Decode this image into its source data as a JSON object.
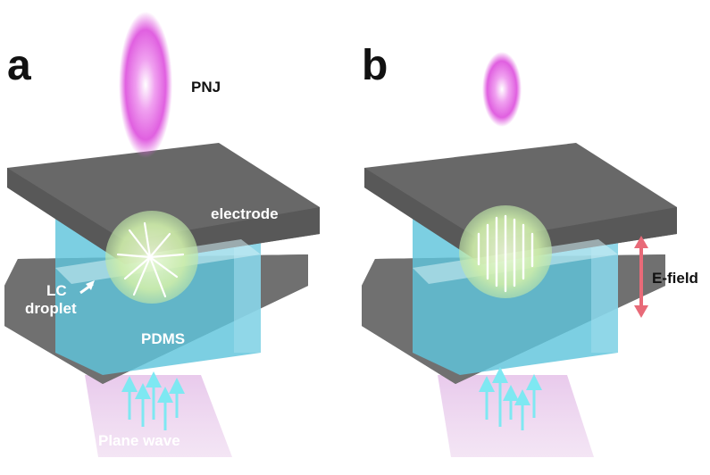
{
  "panels": [
    {
      "label": "a",
      "pnj_label": "PNJ",
      "electrode_label": "electrode",
      "droplet_label_line1": "LC",
      "droplet_label_line2": "droplet",
      "pdms_label": "PDMS",
      "plane_wave_label": "Plane wave",
      "liquid_crystal_state": "random"
    },
    {
      "label": "b",
      "efield_label": "E-field",
      "liquid_crystal_state": "aligned"
    }
  ],
  "colors": {
    "electrode": "#6f6f6f",
    "pdms": "#5fc4dc",
    "droplet": "#d8f2b0",
    "pnj": "#e65ce6",
    "plane_wave": "#e8c8ea",
    "arrows": "#7ee8f2",
    "efield_arrow": "#e86a78"
  }
}
